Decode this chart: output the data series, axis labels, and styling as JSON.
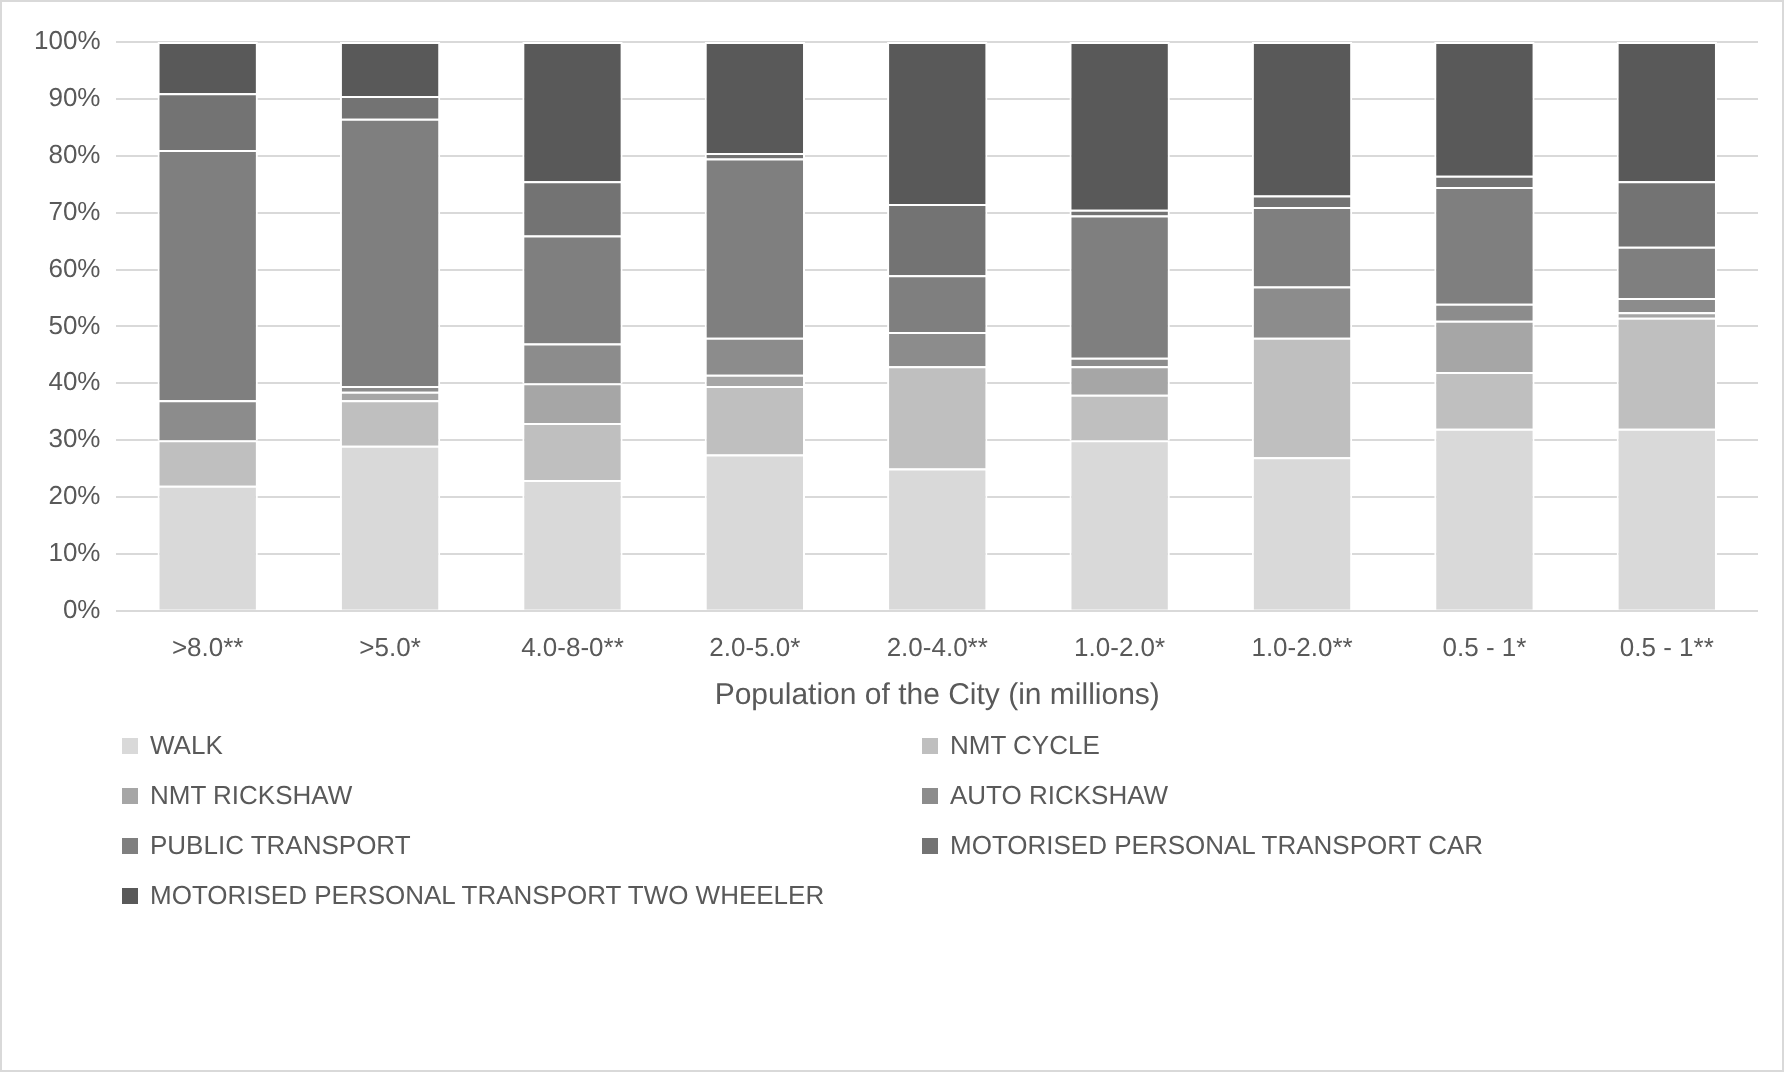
{
  "chart_data": {
    "type": "bar",
    "stacked": true,
    "xlabel": "Population of the City (in millions)",
    "categories": [
      ">8.0**",
      ">5.0*",
      "4.0-8-0**",
      "2.0-5.0*",
      "2.0-4.0**",
      "1.0-2.0*",
      "1.0-2.0**",
      "0.5 - 1*",
      "0.5 - 1**"
    ],
    "series": [
      {
        "name": "WALK",
        "color": "#d9d9d9",
        "values": [
          22,
          29,
          23,
          27.5,
          25,
          30,
          27,
          32,
          32
        ]
      },
      {
        "name": "NMT CYCLE",
        "color": "#bfbfbf",
        "values": [
          8,
          8,
          10,
          12,
          18,
          8,
          21,
          10,
          19.5
        ]
      },
      {
        "name": "NMT RICKSHAW",
        "color": "#a6a6a6",
        "values": [
          0,
          1.5,
          7,
          2,
          0,
          5,
          0,
          9,
          1
        ]
      },
      {
        "name": "AUTO RICKSHAW",
        "color": "#8c8c8c",
        "values": [
          7,
          1,
          7,
          6.5,
          6,
          1.5,
          9,
          3,
          2.5
        ]
      },
      {
        "name": "PUBLIC TRANSPORT",
        "color": "#7f7f7f",
        "values": [
          44,
          47,
          19,
          31.5,
          10,
          25,
          14,
          20.5,
          9
        ]
      },
      {
        "name": "MOTORISED PERSONAL TRANSPORT CAR",
        "color": "#737373",
        "values": [
          10,
          4,
          9.5,
          1,
          12.5,
          1,
          2,
          2,
          11.5
        ]
      },
      {
        "name": "MOTORISED PERSONAL TRANSPORT TWO WHEELER",
        "color": "#595959",
        "values": [
          9,
          9.5,
          24.5,
          19.5,
          28.5,
          29.5,
          27,
          23.5,
          24.5
        ]
      }
    ],
    "ylim": [
      0,
      100
    ],
    "yticks": [
      {
        "value": 0,
        "label": "0%"
      },
      {
        "value": 10,
        "label": "10%"
      },
      {
        "value": 20,
        "label": "20%"
      },
      {
        "value": 30,
        "label": "30%"
      },
      {
        "value": 40,
        "label": "40%"
      },
      {
        "value": 50,
        "label": "50%"
      },
      {
        "value": 60,
        "label": "60%"
      },
      {
        "value": 70,
        "label": "70%"
      },
      {
        "value": 80,
        "label": "80%"
      },
      {
        "value": 90,
        "label": "90%"
      },
      {
        "value": 100,
        "label": "100%"
      }
    ],
    "grid": "y",
    "legend": "bottom"
  }
}
